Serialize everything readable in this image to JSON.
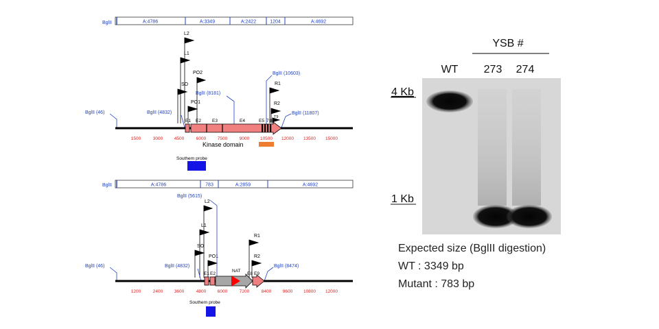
{
  "top_map": {
    "frag_enzyme": "BglII",
    "fragments": [
      "A:4786",
      "A:3349",
      "A:2422",
      "1204",
      "A:4692"
    ],
    "sites": [
      "BglII (46)",
      "BglII (4832)",
      "BglII (8181)",
      "BglII (10603)",
      "BglII (11807)"
    ],
    "primers": [
      "L2",
      "L1",
      "PO2",
      "SO",
      "PO1",
      "R1",
      "R2",
      "T9"
    ],
    "exons": [
      "E1",
      "E2",
      "E3",
      "E4",
      "E5",
      "7",
      "8"
    ],
    "ticks": [
      "1500",
      "3000",
      "4500",
      "6000",
      "7500",
      "9000",
      "10500",
      "12000",
      "13500",
      "15000"
    ],
    "domain_label": "Kinase domain",
    "probe_label": "Southern probe",
    "colors": {
      "exon": "#f08080",
      "domain": "#ed7d31",
      "probe": "#1414e6"
    }
  },
  "bottom_map": {
    "frag_enzyme": "BglII",
    "fragments": [
      "A:4786",
      "783",
      "A:2859",
      "A:4692"
    ],
    "sites": [
      "BglII (46)",
      "BglII (4832)",
      "BglII (5615)",
      "BglII (8474)"
    ],
    "primers": [
      "L2",
      "L1",
      "SO",
      "PO1",
      "R1",
      "R2"
    ],
    "exons": [
      "E1",
      "E2",
      "NAT",
      "E8",
      "E9"
    ],
    "ticks": [
      "1200",
      "2400",
      "3600",
      "4800",
      "6000",
      "7200",
      "8400",
      "9600",
      "10800",
      "12000"
    ],
    "probe_label": "Southern probe",
    "colors": {
      "cassette": "#a6a6a6",
      "marker": "#ff0000"
    }
  },
  "blot": {
    "group_label": "YSB #",
    "lanes": [
      "WT",
      "273",
      "274"
    ],
    "size_markers": [
      "4 Kb",
      "1 Kb"
    ]
  },
  "notes": {
    "line1": "Expected size (BglII digestion)",
    "line2": "WT : 3349 bp",
    "line3": "Mutant : 783 bp"
  }
}
